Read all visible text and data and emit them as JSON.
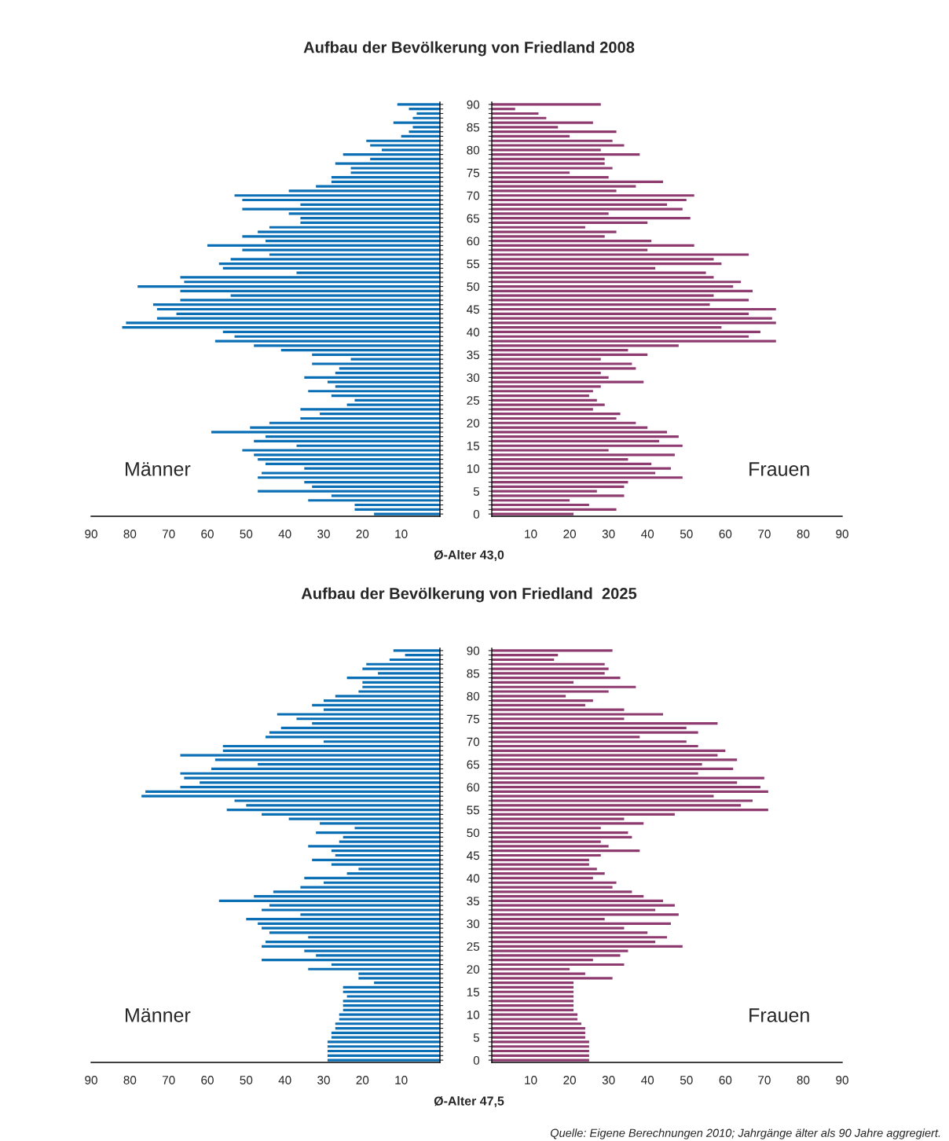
{
  "chart_data": [
    {
      "type": "bar",
      "orientation": "horizontal",
      "title": "Aufbau der Bevölkerung von Friedland 2008",
      "xlabel": "Ø-Alter 43,0",
      "categories": [
        "90",
        null,
        null,
        null,
        null,
        "85",
        null,
        null,
        null,
        null,
        "80",
        null,
        null,
        null,
        null,
        "75",
        null,
        null,
        null,
        null,
        "70",
        null,
        null,
        null,
        null,
        "65",
        null,
        null,
        null,
        null,
        "60",
        null,
        null,
        null,
        null,
        "55",
        null,
        null,
        null,
        null,
        "50",
        null,
        null,
        null,
        null,
        "45",
        null,
        null,
        null,
        null,
        "40",
        null,
        null,
        null,
        null,
        "35",
        null,
        null,
        null,
        null,
        "30",
        null,
        null,
        null,
        null,
        "25",
        null,
        null,
        null,
        null,
        "20",
        null,
        null,
        null,
        null,
        "15",
        null,
        null,
        null,
        null,
        "10",
        null,
        null,
        null,
        null,
        "5",
        null,
        null,
        null,
        null,
        "0"
      ],
      "series": [
        {
          "color": "#0b6fb5",
          "values": [
            11,
            8,
            6,
            7,
            12,
            7,
            8,
            10,
            19,
            18,
            15,
            25,
            18,
            27,
            23,
            23,
            28,
            28,
            32,
            39,
            53,
            51,
            36,
            51,
            39,
            36,
            36,
            44,
            47,
            51,
            45,
            60,
            51,
            44,
            54,
            57,
            56,
            37,
            67,
            66,
            78,
            67,
            54,
            67,
            74,
            73,
            68,
            73,
            81,
            82,
            56,
            53,
            58,
            48,
            41,
            33,
            23,
            33,
            26,
            27,
            35,
            29,
            27,
            34,
            28,
            22,
            24,
            36,
            31,
            36,
            44,
            49,
            59,
            45,
            48,
            37,
            51,
            48,
            47,
            45,
            35,
            46,
            47,
            35,
            33,
            47,
            28,
            34,
            22,
            22,
            17
          ]
        }
      ],
      "xlim": [
        90,
        0
      ],
      "xticks": [
        90,
        80,
        70,
        60,
        50,
        40,
        30,
        20,
        10
      ],
      "tick_labels": "x",
      "annotations": [
        "Männer"
      ]
    },
    {
      "type": "bar",
      "orientation": "horizontal",
      "categories": [
        "90",
        null,
        null,
        null,
        null,
        "85",
        null,
        null,
        null,
        null,
        "80",
        null,
        null,
        null,
        null,
        "75",
        null,
        null,
        null,
        null,
        "70",
        null,
        null,
        null,
        null,
        "65",
        null,
        null,
        null,
        null,
        "60",
        null,
        null,
        null,
        null,
        "55",
        null,
        null,
        null,
        null,
        "50",
        null,
        null,
        null,
        null,
        "45",
        null,
        null,
        null,
        null,
        "40",
        null,
        null,
        null,
        null,
        "35",
        null,
        null,
        null,
        null,
        "30",
        null,
        null,
        null,
        null,
        "25",
        null,
        null,
        null,
        null,
        "20",
        null,
        null,
        null,
        null,
        "15",
        null,
        null,
        null,
        null,
        "10",
        null,
        null,
        null,
        null,
        "5",
        null,
        null,
        null,
        null,
        "0"
      ],
      "series": [
        {
          "color": "#8e3b70",
          "values": [
            28,
            6,
            12,
            14,
            26,
            17,
            32,
            20,
            31,
            34,
            28,
            38,
            29,
            29,
            31,
            20,
            30,
            44,
            37,
            32,
            52,
            50,
            45,
            49,
            30,
            51,
            40,
            24,
            32,
            29,
            41,
            52,
            40,
            66,
            57,
            59,
            42,
            55,
            57,
            64,
            62,
            67,
            57,
            66,
            56,
            73,
            66,
            72,
            73,
            59,
            69,
            66,
            73,
            48,
            35,
            40,
            28,
            36,
            37,
            28,
            30,
            39,
            28,
            26,
            25,
            27,
            29,
            26,
            33,
            32,
            37,
            40,
            45,
            48,
            43,
            49,
            30,
            47,
            35,
            41,
            46,
            42,
            49,
            35,
            34,
            27,
            34,
            20,
            25,
            32,
            21
          ]
        }
      ],
      "xlim": [
        0,
        90
      ],
      "xticks": [
        10,
        20,
        30,
        40,
        50,
        60,
        70,
        80,
        90
      ],
      "annotations": [
        "Frauen"
      ]
    },
    {
      "type": "bar",
      "orientation": "horizontal",
      "title": "Aufbau der Bevölkerung von Friedland  2025",
      "xlabel": "Ø-Alter 47,5",
      "categories": [
        "90",
        null,
        null,
        null,
        null,
        "85",
        null,
        null,
        null,
        null,
        "80",
        null,
        null,
        null,
        null,
        "75",
        null,
        null,
        null,
        null,
        "70",
        null,
        null,
        null,
        null,
        "65",
        null,
        null,
        null,
        null,
        "60",
        null,
        null,
        null,
        null,
        "55",
        null,
        null,
        null,
        null,
        "50",
        null,
        null,
        null,
        null,
        "45",
        null,
        null,
        null,
        null,
        "40",
        null,
        null,
        null,
        null,
        "35",
        null,
        null,
        null,
        null,
        "30",
        null,
        null,
        null,
        null,
        "25",
        null,
        null,
        null,
        null,
        "20",
        null,
        null,
        null,
        null,
        "15",
        null,
        null,
        null,
        null,
        "10",
        null,
        null,
        null,
        null,
        "5",
        null,
        null,
        null,
        null,
        "0"
      ],
      "series": [
        {
          "color": "#0b6fb5",
          "values": [
            12,
            9,
            13,
            19,
            20,
            16,
            24,
            20,
            20,
            21,
            27,
            30,
            33,
            30,
            42,
            37,
            33,
            41,
            44,
            45,
            30,
            56,
            56,
            67,
            58,
            47,
            59,
            67,
            66,
            62,
            67,
            76,
            77,
            53,
            50,
            55,
            46,
            39,
            31,
            22,
            32,
            25,
            26,
            34,
            28,
            27,
            33,
            28,
            21,
            24,
            35,
            30,
            36,
            43,
            48,
            57,
            44,
            46,
            36,
            50,
            47,
            46,
            44,
            34,
            45,
            46,
            35,
            32,
            46,
            28,
            34,
            21,
            21,
            17,
            25,
            25,
            24,
            25,
            25,
            25,
            26,
            26,
            27,
            27,
            28,
            28,
            29,
            29,
            29,
            29,
            29
          ]
        }
      ],
      "xlim": [
        90,
        0
      ],
      "xticks": [
        90,
        80,
        70,
        60,
        50,
        40,
        30,
        20,
        10
      ],
      "tick_labels": "x",
      "annotations": [
        "Männer"
      ]
    },
    {
      "type": "bar",
      "orientation": "horizontal",
      "categories": [
        "90",
        null,
        null,
        null,
        null,
        "85",
        null,
        null,
        null,
        null,
        "80",
        null,
        null,
        null,
        null,
        "75",
        null,
        null,
        null,
        null,
        "70",
        null,
        null,
        null,
        null,
        "65",
        null,
        null,
        null,
        null,
        "60",
        null,
        null,
        null,
        null,
        "55",
        null,
        null,
        null,
        null,
        "50",
        null,
        null,
        null,
        null,
        "45",
        null,
        null,
        null,
        null,
        "40",
        null,
        null,
        null,
        null,
        "35",
        null,
        null,
        null,
        null,
        "30",
        null,
        null,
        null,
        null,
        "25",
        null,
        null,
        null,
        null,
        "20",
        null,
        null,
        null,
        null,
        "15",
        null,
        null,
        null,
        null,
        "10",
        null,
        null,
        null,
        null,
        "5",
        null,
        null,
        null,
        null,
        "0"
      ],
      "series": [
        {
          "color": "#8e3b70",
          "values": [
            31,
            17,
            16,
            29,
            30,
            29,
            33,
            21,
            37,
            30,
            19,
            26,
            24,
            34,
            44,
            34,
            58,
            50,
            53,
            38,
            50,
            53,
            60,
            58,
            63,
            54,
            62,
            53,
            70,
            63,
            69,
            71,
            57,
            67,
            64,
            71,
            47,
            34,
            39,
            28,
            35,
            36,
            28,
            30,
            38,
            28,
            25,
            25,
            27,
            29,
            26,
            32,
            31,
            36,
            39,
            44,
            47,
            42,
            48,
            29,
            46,
            34,
            40,
            45,
            42,
            49,
            35,
            33,
            26,
            34,
            20,
            24,
            31,
            21,
            21,
            21,
            21,
            21,
            21,
            21,
            22,
            22,
            23,
            24,
            24,
            24,
            25,
            25,
            25,
            25,
            25
          ]
        }
      ],
      "xlim": [
        0,
        90
      ],
      "xticks": [
        10,
        20,
        30,
        40,
        50,
        60,
        70,
        80,
        90
      ],
      "annotations": [
        "Frauen",
        "Quelle: Eigene Berechnungen 2010; Jahrgänge älter als 90 Jahre aggregiert."
      ]
    }
  ]
}
